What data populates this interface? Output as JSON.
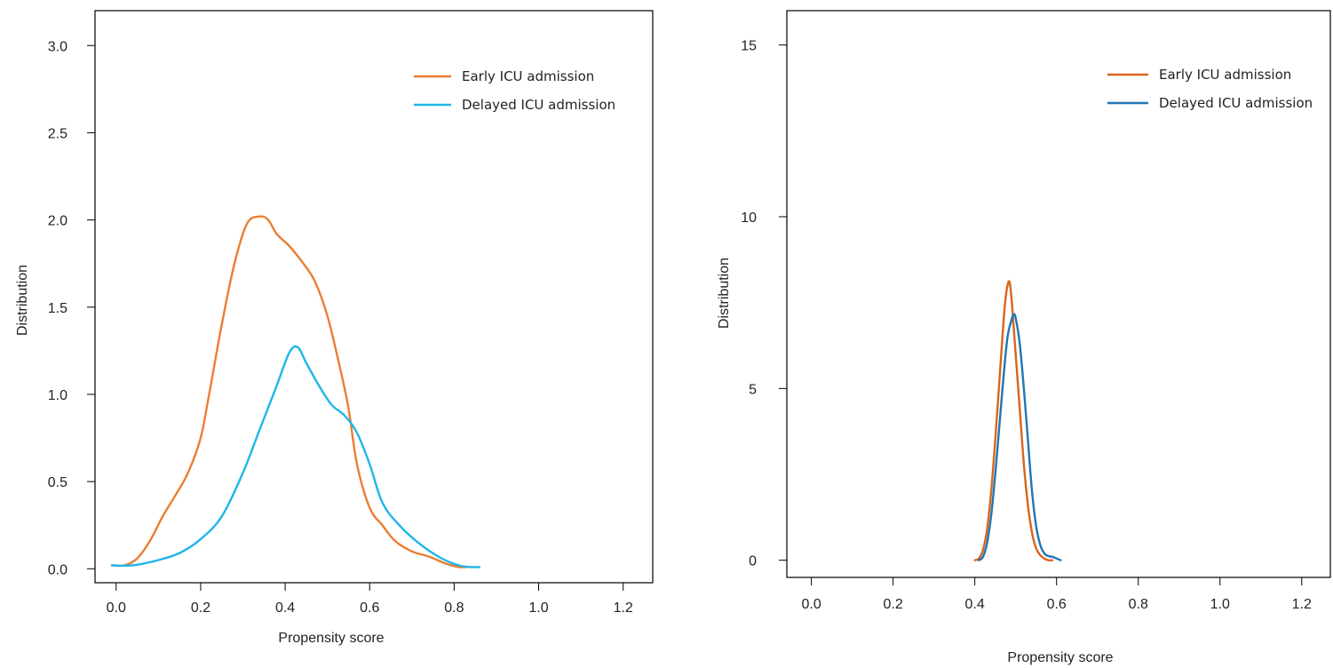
{
  "chart_data": [
    {
      "type": "line",
      "xlabel": "Propensity score",
      "ylabel": "Distribution",
      "xlim": [
        -0.05,
        1.27
      ],
      "ylim": [
        -0.08,
        3.2
      ],
      "xticks": [
        "0.0",
        "0.2",
        "0.4",
        "0.6",
        "0.8",
        "1.0",
        "1.2"
      ],
      "yticks": [
        "0.0",
        "0.5",
        "1.0",
        "1.5",
        "2.0",
        "2.5",
        "3.0"
      ],
      "legend_position": "top-right",
      "series": [
        {
          "name": "Early ICU admission",
          "color": "#ED7D31",
          "x": [
            -0.01,
            0.02,
            0.05,
            0.08,
            0.11,
            0.14,
            0.17,
            0.2,
            0.22,
            0.25,
            0.28,
            0.31,
            0.34,
            0.36,
            0.38,
            0.41,
            0.44,
            0.47,
            0.5,
            0.53,
            0.55,
            0.57,
            0.6,
            0.63,
            0.66,
            0.7,
            0.74,
            0.78,
            0.81,
            0.83
          ],
          "y": [
            0.02,
            0.02,
            0.06,
            0.16,
            0.3,
            0.42,
            0.55,
            0.75,
            1.0,
            1.4,
            1.75,
            1.98,
            2.02,
            2.0,
            1.92,
            1.85,
            1.76,
            1.65,
            1.45,
            1.15,
            0.92,
            0.6,
            0.35,
            0.25,
            0.16,
            0.1,
            0.07,
            0.03,
            0.01,
            0.01
          ]
        },
        {
          "name": "Delayed ICU admission",
          "color": "#1FB6E8",
          "x": [
            -0.01,
            0.04,
            0.1,
            0.15,
            0.2,
            0.25,
            0.3,
            0.34,
            0.38,
            0.41,
            0.43,
            0.45,
            0.48,
            0.51,
            0.54,
            0.57,
            0.6,
            0.63,
            0.67,
            0.72,
            0.77,
            0.81,
            0.84,
            0.86
          ],
          "y": [
            0.02,
            0.02,
            0.05,
            0.09,
            0.17,
            0.3,
            0.55,
            0.8,
            1.05,
            1.24,
            1.27,
            1.18,
            1.05,
            0.94,
            0.88,
            0.78,
            0.6,
            0.38,
            0.25,
            0.14,
            0.06,
            0.02,
            0.01,
            0.01
          ]
        }
      ]
    },
    {
      "type": "line",
      "xlabel": "Propensity score",
      "ylabel": "Distribution",
      "xlim": [
        -0.06,
        1.27
      ],
      "ylim": [
        -0.5,
        16.0
      ],
      "xticks": [
        "0.0",
        "0.2",
        "0.4",
        "0.6",
        "0.8",
        "1.0",
        "1.2"
      ],
      "yticks": [
        "0",
        "5",
        "10",
        "15"
      ],
      "legend_position": "top-right",
      "series": [
        {
          "name": "Early ICU admission",
          "color": "#D9651C",
          "x": [
            0.4,
            0.41,
            0.42,
            0.43,
            0.44,
            0.45,
            0.46,
            0.47,
            0.475,
            0.48,
            0.485,
            0.49,
            0.495,
            0.5,
            0.51,
            0.52,
            0.53,
            0.54,
            0.55,
            0.56,
            0.57,
            0.58,
            0.59
          ],
          "y": [
            0.0,
            0.05,
            0.3,
            0.9,
            2.0,
            3.5,
            5.2,
            6.9,
            7.6,
            8.0,
            8.1,
            7.6,
            6.8,
            6.0,
            4.4,
            2.8,
            1.6,
            0.8,
            0.35,
            0.15,
            0.05,
            0.0,
            0.0
          ]
        },
        {
          "name": "Delayed ICU admission",
          "color": "#1F77B4",
          "x": [
            0.41,
            0.42,
            0.43,
            0.44,
            0.45,
            0.46,
            0.47,
            0.48,
            0.49,
            0.495,
            0.5,
            0.51,
            0.52,
            0.53,
            0.54,
            0.55,
            0.56,
            0.57,
            0.58,
            0.59,
            0.6,
            0.61
          ],
          "y": [
            0.0,
            0.1,
            0.5,
            1.3,
            2.5,
            3.9,
            5.3,
            6.5,
            7.0,
            7.15,
            7.05,
            6.3,
            5.0,
            3.5,
            2.0,
            1.0,
            0.45,
            0.2,
            0.12,
            0.1,
            0.05,
            0.0
          ]
        }
      ]
    }
  ]
}
